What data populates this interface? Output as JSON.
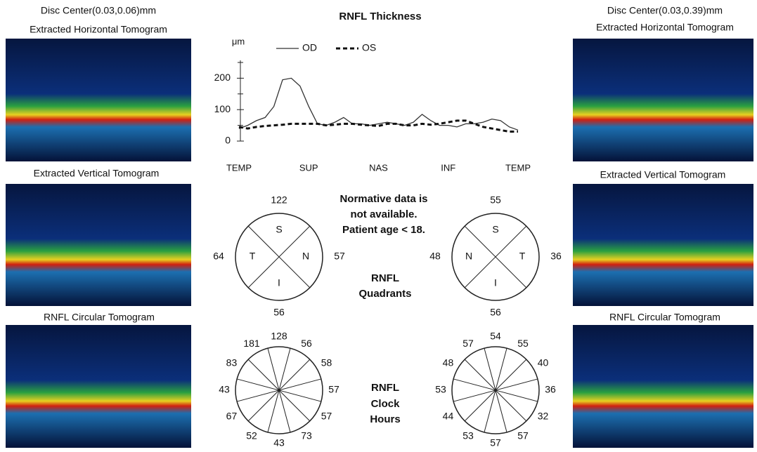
{
  "left": {
    "disc_center": "Disc Center(0.03,0.06)mm",
    "horizontal": "Extracted Horizontal Tomogram",
    "vertical": "Extracted Vertical Tomogram",
    "circular": "RNFL Circular Tomogram"
  },
  "right": {
    "disc_center": "Disc Center(0.03,0.39)mm",
    "horizontal": "Extracted Horizontal Tomogram",
    "vertical": "Extracted Vertical Tomogram",
    "circular": "RNFL Circular Tomogram"
  },
  "chart_data": {
    "type": "line",
    "title": "RNFL Thickness",
    "y_unit": "μm",
    "categories": [
      "TEMP",
      null,
      null,
      null,
      null,
      null,
      null,
      null,
      "SUP",
      null,
      null,
      null,
      null,
      null,
      null,
      null,
      "NAS",
      null,
      null,
      null,
      null,
      null,
      null,
      null,
      "INF",
      null,
      null,
      null,
      null,
      null,
      null,
      null,
      "TEMP"
    ],
    "series": [
      {
        "name": "OD",
        "color": "#333333",
        "dashed": false,
        "values": [
          40,
          50,
          65,
          75,
          110,
          195,
          200,
          175,
          110,
          55,
          50,
          60,
          75,
          55,
          55,
          50,
          55,
          60,
          55,
          50,
          60,
          85,
          65,
          50,
          50,
          45,
          55,
          55,
          60,
          70,
          65,
          45,
          35
        ]
      },
      {
        "name": "OS",
        "color": "#111111",
        "dashed": true,
        "values": [
          45,
          40,
          45,
          48,
          50,
          52,
          55,
          55,
          55,
          55,
          50,
          52,
          55,
          55,
          52,
          50,
          48,
          55,
          55,
          50,
          50,
          55,
          52,
          55,
          60,
          65,
          65,
          55,
          45,
          40,
          35,
          30,
          30
        ]
      }
    ],
    "ylim": [
      0,
      250
    ],
    "yticks": [
      0,
      100,
      200
    ],
    "yticks_minor": [
      50,
      150,
      250
    ]
  },
  "notice": [
    "Normative data is",
    "not available.",
    "Patient age < 18."
  ],
  "quadrants_title": [
    "RNFL",
    "Quadrants"
  ],
  "clock_title": [
    "RNFL",
    "Clock",
    "Hours"
  ],
  "quadrants": {
    "od": [
      {
        "label": "S",
        "value": 122
      },
      {
        "label": "N",
        "value": 57
      },
      {
        "label": "I",
        "value": 56
      },
      {
        "label": "T",
        "value": 64
      }
    ],
    "os": [
      {
        "label": "S",
        "value": 55
      },
      {
        "label": "T",
        "value": 36
      },
      {
        "label": "I",
        "value": 56
      },
      {
        "label": "N",
        "value": 48
      }
    ]
  },
  "clock_hours": {
    "od": [
      128,
      56,
      58,
      57,
      57,
      73,
      43,
      52,
      67,
      43,
      83,
      181
    ],
    "os": [
      54,
      55,
      40,
      36,
      32,
      57,
      57,
      53,
      44,
      53,
      48,
      57
    ]
  }
}
